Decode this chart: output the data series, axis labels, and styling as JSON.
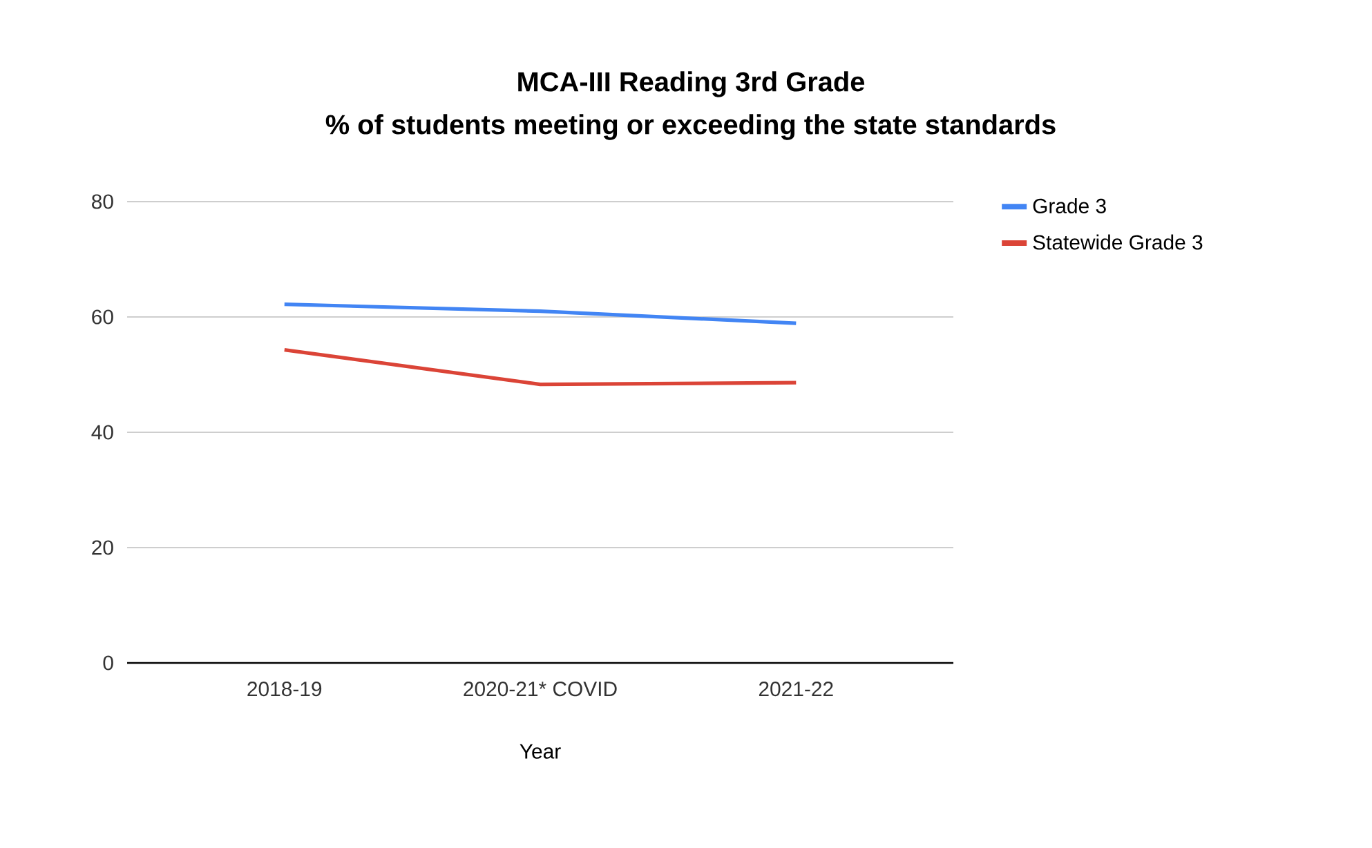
{
  "chart_data": {
    "type": "line",
    "title": "MCA-III Reading 3rd Grade",
    "subtitle": "% of students meeting or exceeding the state standards",
    "xlabel": "Year",
    "categories": [
      "2018-19",
      "2020-21* COVID",
      "2021-22"
    ],
    "series": [
      {
        "name": "Grade 3",
        "color": "#4285f4",
        "values": [
          62.2,
          61,
          58.9
        ]
      },
      {
        "name": "Statewide Grade 3",
        "color": "#db4437",
        "values": [
          54.3,
          48.3,
          48.6
        ]
      }
    ],
    "ylim": [
      0,
      80
    ],
    "yticks": [
      0,
      20,
      40,
      60,
      80
    ],
    "grid": "y",
    "legend": "right",
    "marker": "none",
    "line_style": "solid"
  }
}
